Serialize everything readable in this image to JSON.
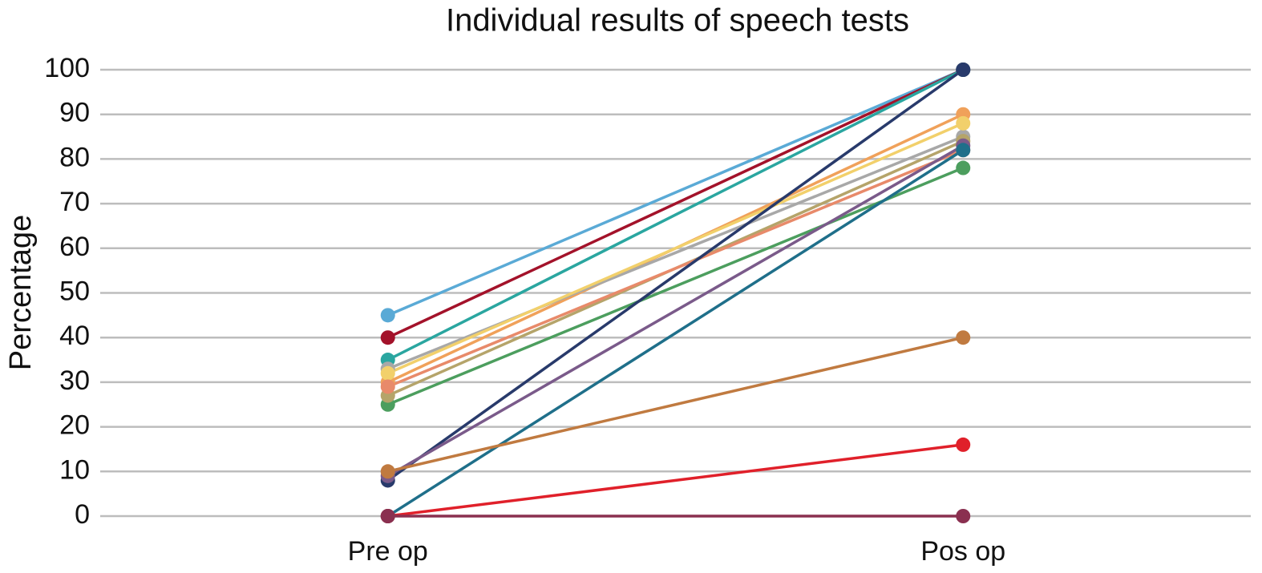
{
  "chart_data": {
    "type": "line",
    "title": "Individual results of speech tests",
    "y_label": "Percentage",
    "categories": [
      "Pre op",
      "Pos op"
    ],
    "series": [
      {
        "color": "#5aaad6",
        "values": [
          45,
          100
        ]
      },
      {
        "color": "#a3122a",
        "values": [
          40,
          100
        ]
      },
      {
        "color": "#2aa6a0",
        "values": [
          35,
          100
        ]
      },
      {
        "color": "#f0a15a",
        "values": [
          30,
          90
        ]
      },
      {
        "color": "#a8a8a8",
        "values": [
          33,
          85
        ]
      },
      {
        "color": "#f2d06b",
        "values": [
          32,
          88
        ]
      },
      {
        "color": "#4c9e5e",
        "values": [
          25,
          78
        ]
      },
      {
        "color": "#b5a46a",
        "values": [
          27,
          84
        ]
      },
      {
        "color": "#e88a6a",
        "values": [
          29,
          82
        ]
      },
      {
        "color": "#283a6b",
        "values": [
          8,
          100
        ]
      },
      {
        "color": "#7a5a8a",
        "values": [
          9,
          83
        ]
      },
      {
        "color": "#1f6f8a",
        "values": [
          0,
          82
        ]
      },
      {
        "color": "#c07a40",
        "values": [
          10,
          40
        ]
      },
      {
        "color": "#e0202a",
        "values": [
          0,
          16
        ]
      },
      {
        "color": "#8a3050",
        "values": [
          0,
          0
        ]
      }
    ],
    "ylim": [
      0,
      100
    ],
    "yticks": [
      0,
      10,
      20,
      30,
      40,
      50,
      60,
      70,
      80,
      90,
      100
    ],
    "grid": true
  }
}
